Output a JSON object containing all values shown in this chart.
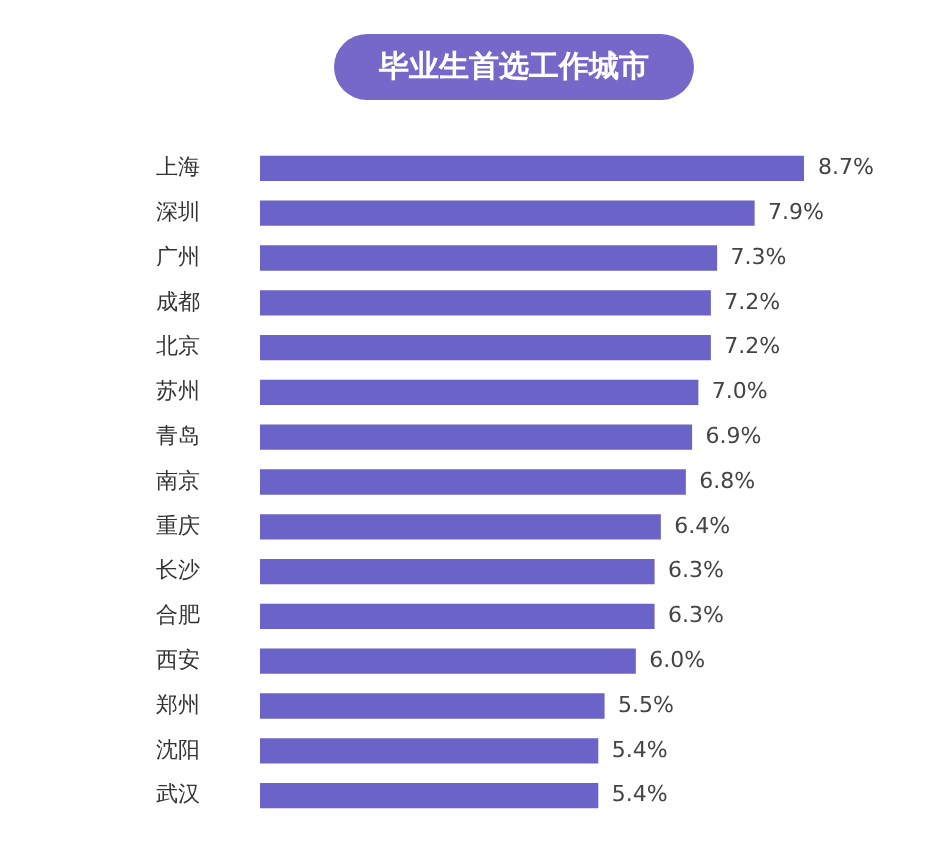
{
  "chart_data": {
    "type": "bar",
    "orientation": "horizontal",
    "title": "毕业生首选工作城市",
    "categories": [
      "上海",
      "深圳",
      "广州",
      "成都",
      "北京",
      "苏州",
      "青岛",
      "南京",
      "重庆",
      "长沙",
      "合肥",
      "西安",
      "郑州",
      "沈阳",
      "武汉"
    ],
    "values": [
      8.7,
      7.9,
      7.3,
      7.2,
      7.2,
      7.0,
      6.9,
      6.8,
      6.4,
      6.3,
      6.3,
      6.0,
      5.5,
      5.4,
      5.4
    ],
    "value_labels": [
      "8.7%",
      "7.9%",
      "7.3%",
      "7.2%",
      "7.2%",
      "7.0%",
      "6.9%",
      "6.8%",
      "6.4%",
      "6.3%",
      "6.3%",
      "6.0%",
      "5.5%",
      "5.4%",
      "5.4%"
    ],
    "color": "#6b63c8",
    "tick_labels": "y"
  }
}
